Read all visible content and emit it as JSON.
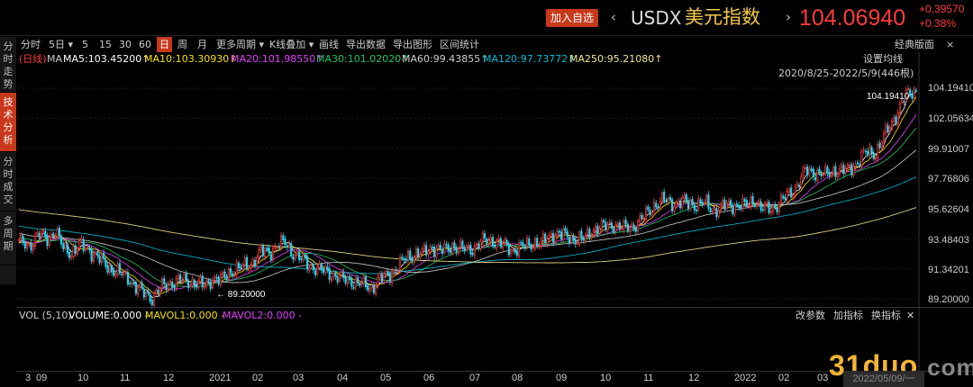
{
  "header": {
    "add_watchlist": "加入自选",
    "prev_arrow": "‹",
    "next_arrow": "›",
    "symbol": "USDX",
    "name": "美元指数",
    "price": "104.06940",
    "change": "+0.39570",
    "change_pct": "+0.38%"
  },
  "sidebar": {
    "tabs": [
      {
        "label": "分时走势",
        "active": false
      },
      {
        "label": "技术分析",
        "active": true
      },
      {
        "label": "分时成交",
        "active": false
      },
      {
        "label": "多周期",
        "active": false
      }
    ]
  },
  "toolbar": {
    "periods": [
      {
        "label": "分时",
        "active": false
      },
      {
        "label": "5日 ▾",
        "active": false
      },
      {
        "label": "5",
        "active": false
      },
      {
        "label": "15",
        "active": false
      },
      {
        "label": "30",
        "active": false
      },
      {
        "label": "60",
        "active": false
      },
      {
        "label": "日",
        "active": true
      },
      {
        "label": "周",
        "active": false
      },
      {
        "label": "月",
        "active": false
      },
      {
        "label": "更多周期 ▾",
        "active": false
      },
      {
        "label": "K线叠加 ▾",
        "active": false
      },
      {
        "label": "画线",
        "active": false
      },
      {
        "label": "导出数据",
        "active": false
      },
      {
        "label": "导出图形",
        "active": false
      },
      {
        "label": "区间统计",
        "active": false
      }
    ],
    "classic": "经典版面",
    "close": "×"
  },
  "ma_legend": {
    "prefix": "(日线)",
    "ma": "MA",
    "items": [
      {
        "text": "MA5:103.45200↑",
        "color": "#ffffff"
      },
      {
        "text": "MA10:103.30930↑",
        "color": "#f5e100"
      },
      {
        "text": "MA20:101.98550↑",
        "color": "#e040fb"
      },
      {
        "text": "MA30:101.02020↑",
        "color": "#22c55e"
      },
      {
        "text": "MA60:99.43855↑",
        "color": "#cccccc"
      },
      {
        "text": "MA120:97.73772↑",
        "color": "#00bcd4"
      },
      {
        "text": "MA250:95.21080↑",
        "color": "#f0e68c"
      }
    ],
    "settings": "设置均线",
    "range": "2020/8/25-2022/5/9(446根)"
  },
  "volume": {
    "label": "VOL (5,10)",
    "volume": "VOLUME:0.000 -",
    "mavol1": "MAVOL1:0.000 -",
    "mavol2": "MAVOL2:0.000 -",
    "btn_params": "改参数",
    "btn_add": "加指标",
    "btn_switch": "换指标",
    "btn_close": "✕"
  },
  "chart_data": {
    "type": "candlestick",
    "title": "USDX 美元指数",
    "period": "日",
    "range": "2020/8/25-2022/5/9",
    "bars": 446,
    "y_ticks": [
      "104.19410",
      "102.05634",
      "99.91007",
      "97.76806",
      "95.62604",
      "93.48403",
      "91.34201",
      "89.20000"
    ],
    "ylim": [
      89.2,
      104.1941
    ],
    "max_label": "104.19410",
    "min_label": "← 89.20000",
    "x_ticks": [
      "3",
      "09",
      "10",
      "11",
      "12",
      "2021",
      "02",
      "03",
      "04",
      "05",
      "06",
      "07",
      "08",
      "09",
      "10",
      "11",
      "12",
      "2022",
      "02",
      "03",
      "04"
    ],
    "cursor_date": "2022/05/09/一",
    "close_path": [
      [
        0,
        93.2
      ],
      [
        5,
        93.0
      ],
      [
        10,
        93.8
      ],
      [
        14,
        93.5
      ],
      [
        18,
        94.0
      ],
      [
        22,
        92.8
      ],
      [
        26,
        92.5
      ],
      [
        30,
        93.0
      ],
      [
        35,
        92.7
      ],
      [
        40,
        92.0
      ],
      [
        45,
        91.4
      ],
      [
        50,
        91.0
      ],
      [
        55,
        90.6
      ],
      [
        58,
        90.0
      ],
      [
        62,
        89.6
      ],
      [
        66,
        89.3
      ],
      [
        70,
        89.9
      ],
      [
        74,
        90.3
      ],
      [
        80,
        90.5
      ],
      [
        86,
        90.4
      ],
      [
        92,
        90.1
      ],
      [
        96,
        90.7
      ],
      [
        100,
        90.5
      ],
      [
        105,
        91.2
      ],
      [
        110,
        91.4
      ],
      [
        115,
        91.7
      ],
      [
        120,
        92.5
      ],
      [
        125,
        92.6
      ],
      [
        128,
        93.0
      ],
      [
        132,
        93.2
      ],
      [
        135,
        92.6
      ],
      [
        140,
        92.0
      ],
      [
        145,
        91.5
      ],
      [
        150,
        91.2
      ],
      [
        155,
        91.0
      ],
      [
        160,
        90.6
      ],
      [
        165,
        90.5
      ],
      [
        170,
        90.2
      ],
      [
        175,
        90.0
      ],
      [
        178,
        90.5
      ],
      [
        183,
        90.9
      ],
      [
        188,
        91.5
      ],
      [
        192,
        92.1
      ],
      [
        196,
        92.4
      ],
      [
        200,
        92.4
      ],
      [
        205,
        92.9
      ],
      [
        210,
        92.6
      ],
      [
        215,
        93.0
      ],
      [
        220,
        92.7
      ],
      [
        225,
        92.8
      ],
      [
        230,
        93.3
      ],
      [
        235,
        93.4
      ],
      [
        240,
        93.0
      ],
      [
        245,
        92.7
      ],
      [
        250,
        92.9
      ],
      [
        255,
        93.2
      ],
      [
        260,
        93.2
      ],
      [
        265,
        93.9
      ],
      [
        270,
        93.7
      ],
      [
        275,
        93.5
      ],
      [
        280,
        93.4
      ],
      [
        285,
        94.2
      ],
      [
        290,
        94.3
      ],
      [
        295,
        94.5
      ],
      [
        300,
        94.2
      ],
      [
        305,
        94.4
      ],
      [
        310,
        95.0
      ],
      [
        315,
        95.9
      ],
      [
        320,
        96.2
      ],
      [
        325,
        96.0
      ],
      [
        330,
        96.1
      ],
      [
        335,
        95.9
      ],
      [
        340,
        96.0
      ],
      [
        345,
        95.5
      ],
      [
        350,
        95.8
      ],
      [
        355,
        95.9
      ],
      [
        360,
        95.8
      ],
      [
        365,
        96.3
      ],
      [
        368,
        95.6
      ],
      [
        372,
        95.6
      ],
      [
        376,
        95.9
      ],
      [
        380,
        96.4
      ],
      [
        385,
        97.1
      ],
      [
        390,
        98.3
      ],
      [
        395,
        98.2
      ],
      [
        400,
        98.0
      ],
      [
        405,
        98.4
      ],
      [
        410,
        98.3
      ],
      [
        415,
        98.8
      ],
      [
        420,
        99.6
      ],
      [
        425,
        99.6
      ],
      [
        430,
        101.0
      ],
      [
        435,
        102.3
      ],
      [
        440,
        103.7
      ],
      [
        445,
        104.07
      ]
    ],
    "ma_series": [
      {
        "name": "MA5",
        "color": "#ffffff",
        "last": 103.452
      },
      {
        "name": "MA10",
        "color": "#f5e100",
        "last": 103.3093
      },
      {
        "name": "MA20",
        "color": "#e040fb",
        "last": 101.9855
      },
      {
        "name": "MA30",
        "color": "#22c55e",
        "last": 101.0202
      },
      {
        "name": "MA60",
        "color": "#cccccc",
        "last": 99.43855
      },
      {
        "name": "MA120",
        "color": "#00bcd4",
        "last": 97.73772
      },
      {
        "name": "MA250",
        "color": "#f0e68c",
        "last": 95.2108
      }
    ],
    "candle_colors": {
      "up": "#ff3b3b",
      "down": "#22d3ee"
    }
  },
  "watermark": {
    "main": "31duo",
    "dot": ".",
    "com": "com"
  }
}
